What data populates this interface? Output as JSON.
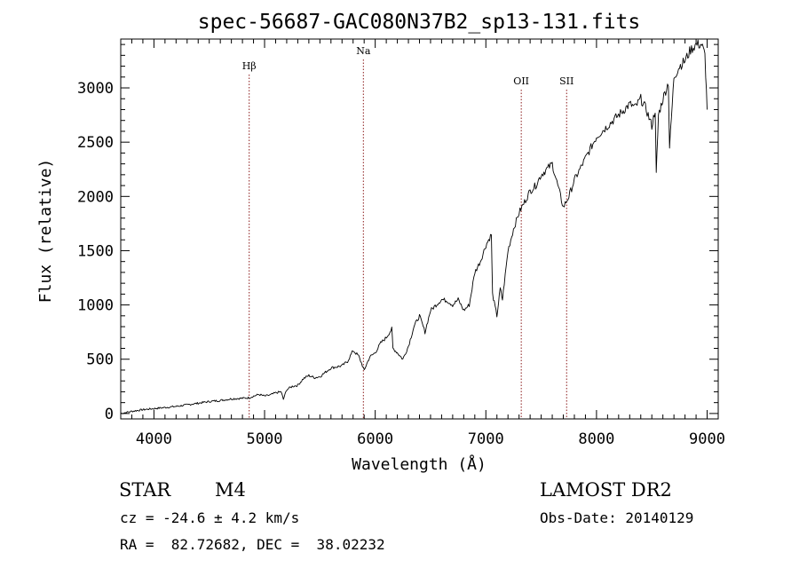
{
  "chart_data": {
    "type": "line",
    "title": "spec-56687-GAC080N37B2_sp13-131.fits",
    "xlabel": "Wavelength (Å)",
    "ylabel": "Flux (relative)",
    "xlim": [
      3700,
      9100
    ],
    "ylim": [
      -50,
      3450
    ],
    "xticks": [
      4000,
      5000,
      6000,
      7000,
      8000,
      9000
    ],
    "yticks": [
      0,
      500,
      1000,
      1500,
      2000,
      2500,
      3000
    ],
    "line_markers": [
      {
        "label": "Hβ",
        "x": 4861
      },
      {
        "label": "Na",
        "x": 5893
      },
      {
        "label": "OII",
        "x": 7320
      },
      {
        "label": "SII",
        "x": 7730
      }
    ],
    "marker_color": "#8b1a1a",
    "series": [
      {
        "x": [
          3700,
          3750,
          3800,
          3900,
          4000,
          4100,
          4200,
          4300,
          4400,
          4500,
          4600,
          4700,
          4800,
          4861,
          4900,
          4950,
          5000,
          5050,
          5100,
          5150,
          5170,
          5200,
          5250,
          5300,
          5350,
          5400,
          5450,
          5500,
          5550,
          5600,
          5650,
          5700,
          5750,
          5800,
          5850,
          5893,
          5900,
          5950,
          6000,
          6050,
          6100,
          6150,
          6160,
          6200,
          6250,
          6300,
          6350,
          6400,
          6450,
          6500,
          6550,
          6600,
          6650,
          6700,
          6750,
          6800,
          6850,
          6900,
          6950,
          7000,
          7050,
          7060,
          7100,
          7130,
          7150,
          7200,
          7250,
          7300,
          7350,
          7400,
          7450,
          7500,
          7550,
          7600,
          7650,
          7700,
          7750,
          7800,
          7850,
          7900,
          7950,
          8000,
          8050,
          8100,
          8150,
          8200,
          8250,
          8300,
          8350,
          8400,
          8450,
          8500,
          8530,
          8540,
          8560,
          8600,
          8650,
          8660,
          8700,
          8750,
          8800,
          8850,
          8900,
          8950,
          8980,
          9000
        ],
        "y": [
          0,
          10,
          20,
          35,
          45,
          55,
          65,
          80,
          95,
          110,
          120,
          135,
          140,
          145,
          160,
          175,
          160,
          170,
          190,
          200,
          130,
          220,
          250,
          260,
          320,
          350,
          330,
          340,
          380,
          420,
          430,
          440,
          480,
          580,
          530,
          420,
          400,
          520,
          560,
          650,
          700,
          780,
          600,
          560,
          500,
          620,
          800,
          900,
          750,
          950,
          1000,
          1050,
          1040,
          1000,
          1050,
          950,
          1000,
          1300,
          1400,
          1550,
          1650,
          1100,
          900,
          1150,
          1050,
          1500,
          1700,
          1850,
          1950,
          2050,
          2100,
          2200,
          2250,
          2300,
          2100,
          1900,
          2000,
          2150,
          2250,
          2350,
          2450,
          2550,
          2600,
          2650,
          2700,
          2750,
          2800,
          2850,
          2820,
          2900,
          2800,
          2650,
          2800,
          2200,
          2750,
          2900,
          3050,
          2450,
          3100,
          3200,
          3250,
          3350,
          3400,
          3400,
          3300,
          2800
        ]
      }
    ]
  },
  "info": {
    "object_class": "STAR",
    "subclass": "M4",
    "survey": "LAMOST DR2",
    "cz": "cz = -24.6 ± 4.2 km/s",
    "obs_date": "Obs-Date: 20140129",
    "coords": "RA =  82.72682, DEC =  38.02232"
  }
}
